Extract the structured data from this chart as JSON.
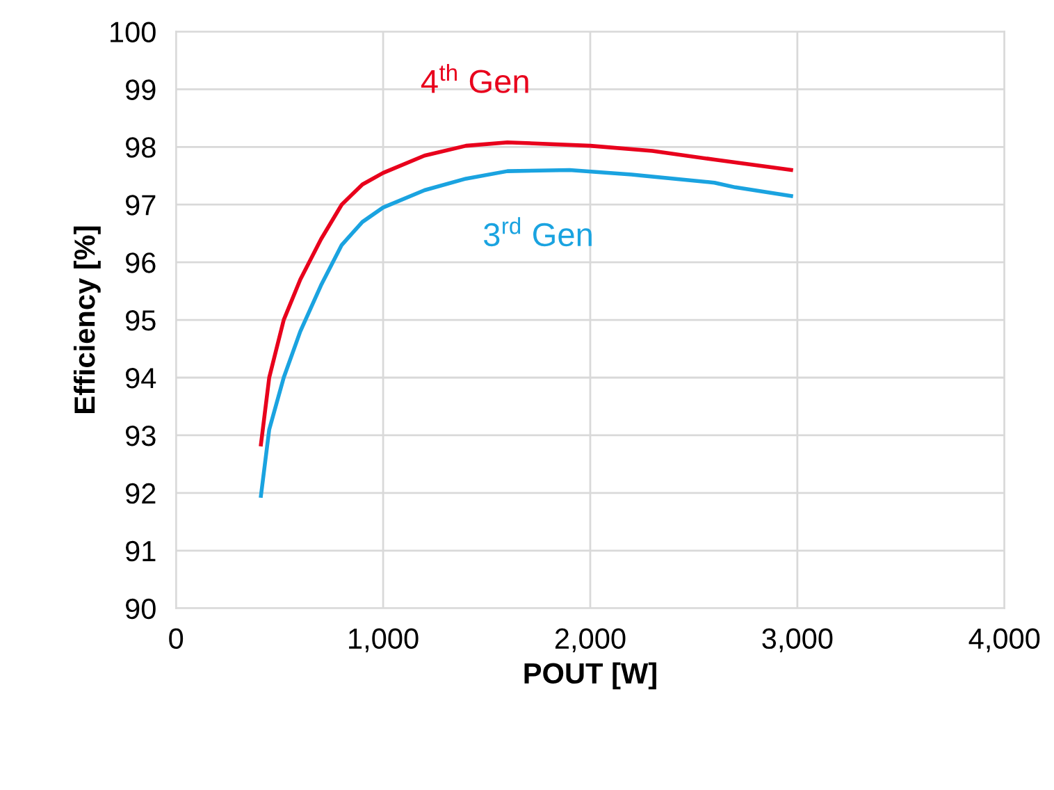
{
  "chart_data": {
    "type": "line",
    "xlabel": "POUT [W]",
    "ylabel": "Efficiency [%]",
    "xlim": [
      0,
      4000
    ],
    "xticks": [
      {
        "value": 0,
        "label": "0"
      },
      {
        "value": 1000,
        "label": "1,000"
      },
      {
        "value": 2000,
        "label": "2,000"
      },
      {
        "value": 3000,
        "label": "3,000"
      },
      {
        "value": 4000,
        "label": "4,000"
      }
    ],
    "ylim": [
      90,
      100
    ],
    "yticks": [
      90,
      91,
      92,
      93,
      94,
      95,
      96,
      97,
      98,
      99,
      100
    ],
    "grid": true,
    "marker": "none",
    "line_style": "solid",
    "series": [
      {
        "color": "#e8001c",
        "x": [
          410,
          450,
          520,
          600,
          700,
          800,
          900,
          1000,
          1200,
          1400,
          1600,
          2000,
          2300,
          2600,
          2970
        ],
        "values": [
          92.84,
          94.0,
          95.0,
          95.7,
          96.4,
          97.0,
          97.35,
          97.55,
          97.85,
          98.02,
          98.08,
          98.02,
          97.93,
          97.78,
          97.6
        ]
      },
      {
        "color": "#1aa3e0",
        "x": [
          410,
          450,
          520,
          600,
          700,
          800,
          900,
          1000,
          1200,
          1400,
          1600,
          1900,
          2200,
          2600,
          2700,
          2970
        ],
        "values": [
          91.95,
          93.1,
          94.0,
          94.8,
          95.6,
          96.3,
          96.7,
          96.95,
          97.25,
          97.45,
          97.58,
          97.6,
          97.52,
          97.38,
          97.3,
          97.15
        ]
      }
    ],
    "annotations": [
      "4$^{th}$ Gen",
      "3$^{rd}$ Gen"
    ]
  }
}
